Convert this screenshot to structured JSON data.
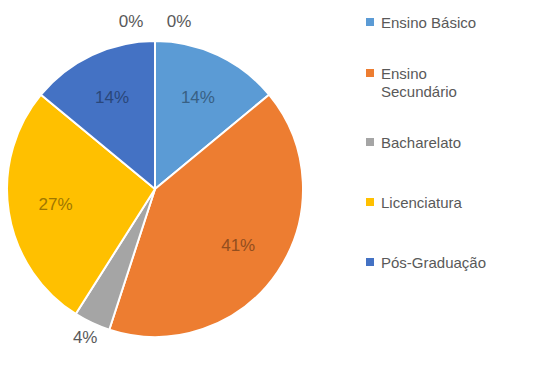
{
  "chart_data": {
    "type": "pie",
    "categories": [
      "Ensino Básico",
      "Ensino Secundário",
      "Bacharelato",
      "Licenciatura",
      "Pós-Graduação",
      null,
      null
    ],
    "values": [
      14,
      41,
      4,
      27,
      14,
      0,
      0
    ],
    "value_labels": [
      "14%",
      "41%",
      "4%",
      "27%",
      "14%",
      "0%",
      "0%"
    ],
    "colors": [
      "#5b9bd5",
      "#ed7d31",
      "#a5a5a5",
      "#ffc000",
      "#4472c4",
      "#70ad47",
      "#264478"
    ],
    "data_labels": true,
    "legend": "right"
  }
}
